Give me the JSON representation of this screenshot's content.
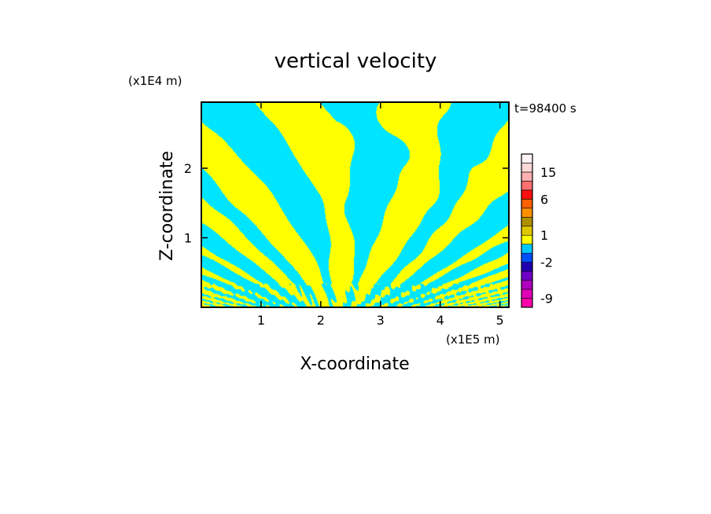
{
  "chart_data": {
    "type": "heatmap",
    "title": "vertical velocity",
    "xlabel": "X-coordinate",
    "ylabel": "Z-coordinate",
    "x_unit": "(x1E5 m)",
    "y_unit": "(x1E4 m)",
    "time_label": "t=98400 s",
    "xlim": [
      0,
      5.15
    ],
    "ylim": [
      0,
      2.95
    ],
    "x_ticks": [
      1,
      2,
      3,
      4,
      5
    ],
    "y_ticks": [
      1,
      2
    ],
    "colors": {
      "positive": "#ffff00",
      "negative": "#00e5ff"
    },
    "colorbar": {
      "levels": [
        -12,
        -9,
        -6,
        -4,
        -3,
        -2,
        -1,
        0,
        1,
        2,
        3,
        4,
        6,
        9,
        12,
        15,
        18,
        21
      ],
      "colors": [
        "#ff00aa",
        "#e000b8",
        "#b000c0",
        "#7000c8",
        "#2000b0",
        "#0050ff",
        "#00c8ff",
        "#ffff00",
        "#e0c800",
        "#b09000",
        "#ff9000",
        "#ff6000",
        "#ff1010",
        "#ff7070",
        "#ffb0b0",
        "#ffd8d8",
        "#fff2f2"
      ],
      "tick_labels": [
        "-9",
        "-2",
        "1",
        "6",
        "15"
      ],
      "tick_values": [
        -9,
        -2,
        1,
        6,
        15
      ]
    }
  }
}
